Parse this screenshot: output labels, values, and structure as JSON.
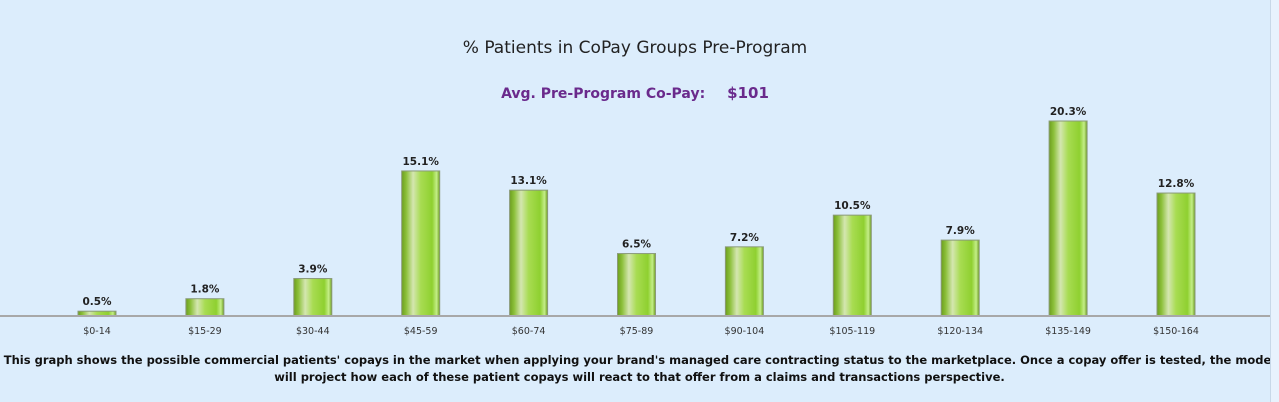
{
  "chart_data": {
    "type": "bar",
    "title": "% Patients in CoPay Groups Pre-Program",
    "subtitle_label": "Avg. Pre-Program Co-Pay:",
    "subtitle_value": "$101",
    "categories": [
      "$0-14",
      "$15-29",
      "$30-44",
      "$45-59",
      "$60-74",
      "$75-89",
      "$90-104",
      "$105-119",
      "$120-134",
      "$135-149",
      "$150-164"
    ],
    "values": [
      0.5,
      1.8,
      3.9,
      15.1,
      13.1,
      6.5,
      7.2,
      10.5,
      7.9,
      20.3,
      12.8
    ],
    "value_labels": [
      "0.5%",
      "1.8%",
      "3.9%",
      "15.1%",
      "13.1%",
      "6.5%",
      "7.2%",
      "10.5%",
      "7.9%",
      "20.3%",
      "12.8%"
    ],
    "xlabel": "",
    "ylabel": "",
    "ylim": [
      0,
      22
    ],
    "grid": false,
    "bar_color": "#9ed94a"
  },
  "caption": "This graph shows the possible commercial patients' copays in the market when applying your brand's managed care contracting status to the marketplace. Once a copay offer is tested, the model will project how each of these patient copays will react to that offer from a claims and transactions perspective."
}
